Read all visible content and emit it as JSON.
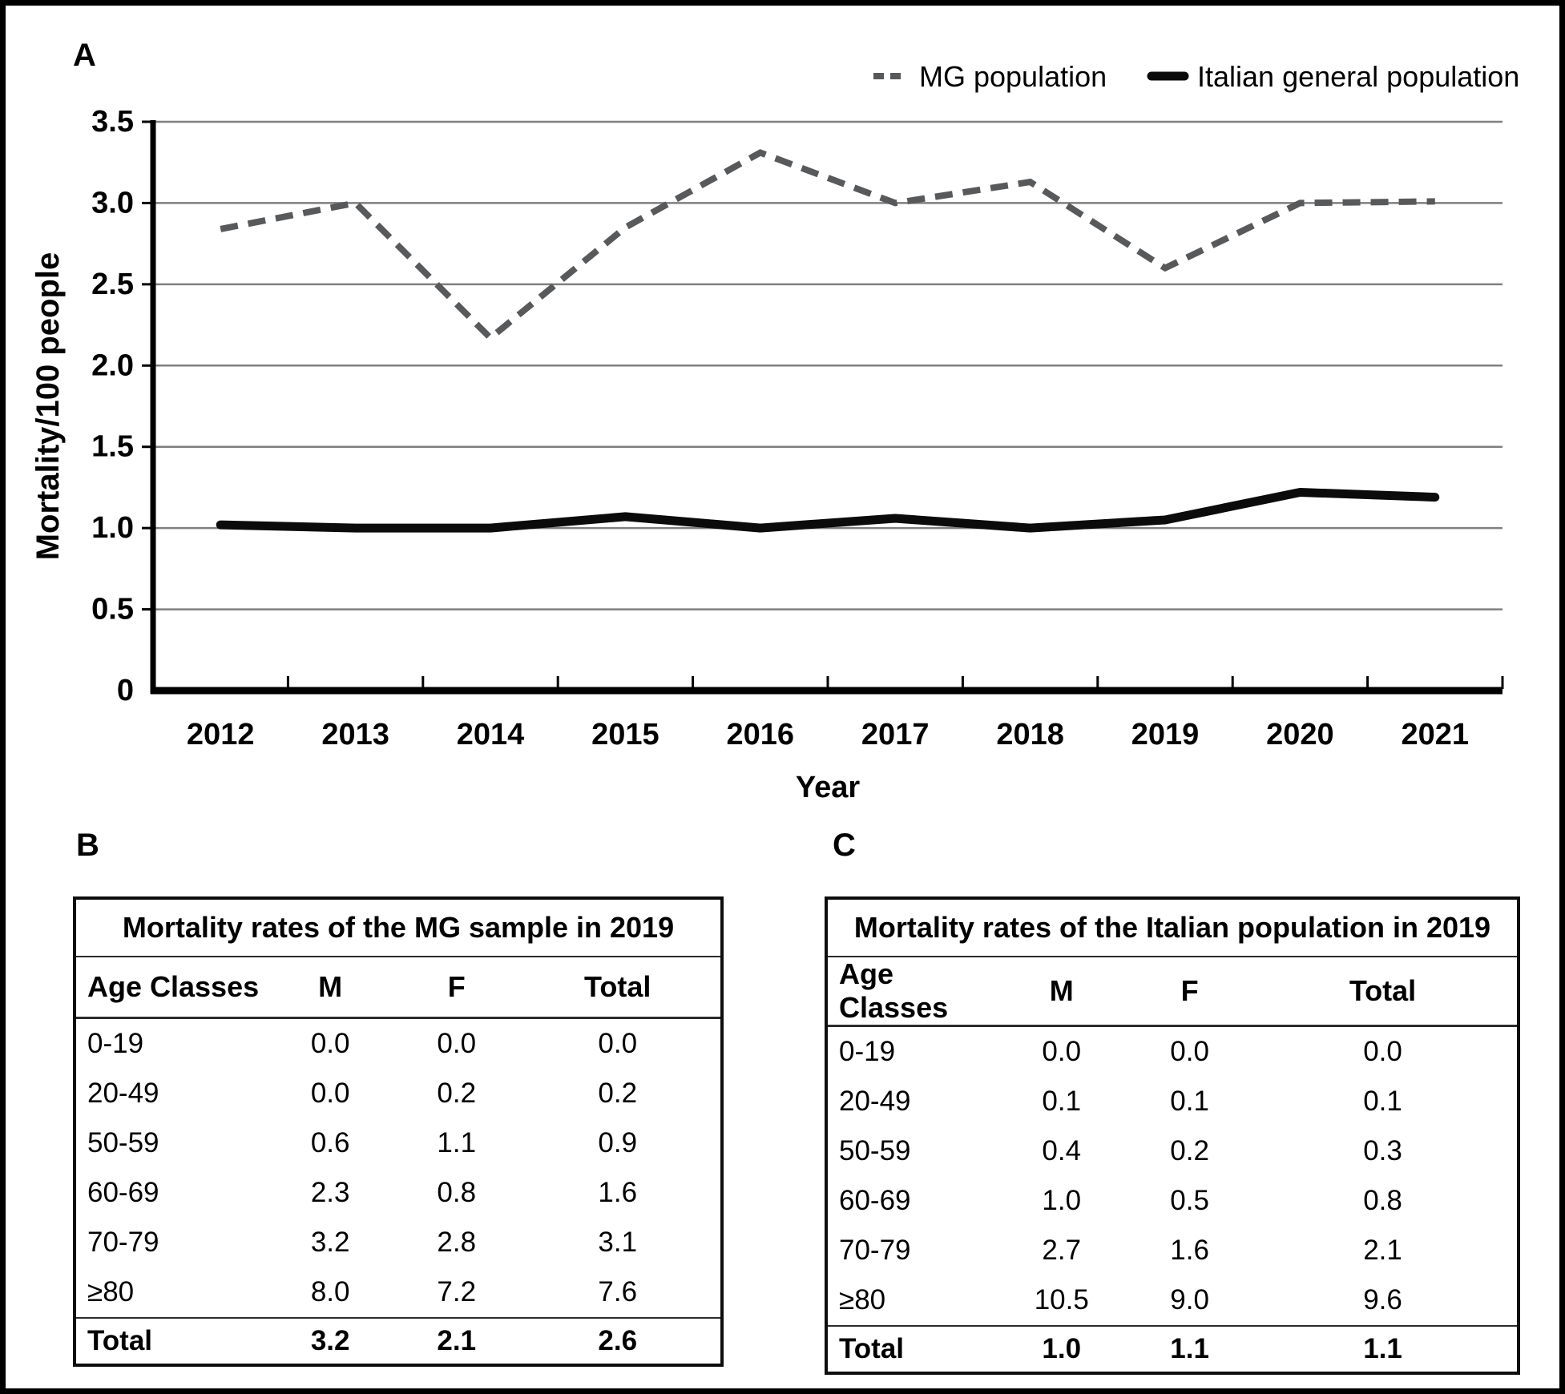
{
  "figure": {
    "panel_a_label": "A",
    "panel_b_label": "B",
    "panel_c_label": "C"
  },
  "chart_data": {
    "type": "line",
    "title": "",
    "xlabel": "Year",
    "ylabel": "Mortality/100 people",
    "categories": [
      "2012",
      "2013",
      "2014",
      "2015",
      "2016",
      "2017",
      "2018",
      "2019",
      "2020",
      "2021"
    ],
    "yticks": [
      "3.5",
      "3.0",
      "2.5",
      "2.0",
      "1.5",
      "1.0",
      "0.5",
      "0"
    ],
    "ylim": [
      0,
      3.5
    ],
    "grid": true,
    "legend_position": "top-right",
    "series": [
      {
        "name": "MG population",
        "style": "dashed",
        "color": "#58595b",
        "values": [
          2.84,
          3.0,
          2.17,
          2.85,
          3.31,
          3.0,
          3.13,
          2.6,
          3.0,
          3.01
        ]
      },
      {
        "name": "Italian general population",
        "style": "solid",
        "color": "#0b0b0b",
        "values": [
          1.02,
          1.0,
          1.0,
          1.07,
          1.0,
          1.06,
          1.0,
          1.05,
          1.22,
          1.19
        ]
      }
    ]
  },
  "table_b": {
    "title": "Mortality rates of the MG sample in 2019",
    "columns": [
      "Age Classes",
      "M",
      "F",
      "Total"
    ],
    "rows": [
      [
        "0-19",
        "0.0",
        "0.0",
        "0.0"
      ],
      [
        "20-49",
        "0.0",
        "0.2",
        "0.2"
      ],
      [
        "50-59",
        "0.6",
        "1.1",
        "0.9"
      ],
      [
        "60-69",
        "2.3",
        "0.8",
        "1.6"
      ],
      [
        "70-79",
        "3.2",
        "2.8",
        "3.1"
      ],
      [
        "≥80",
        "8.0",
        "7.2",
        "7.6"
      ]
    ],
    "total_row": [
      "Total",
      "3.2",
      "2.1",
      "2.6"
    ]
  },
  "table_c": {
    "title": "Mortality rates of the Italian population in 2019",
    "columns": [
      "Age Classes",
      "M",
      "F",
      "Total"
    ],
    "rows": [
      [
        "0-19",
        "0.0",
        "0.0",
        "0.0"
      ],
      [
        "20-49",
        "0.1",
        "0.1",
        "0.1"
      ],
      [
        "50-59",
        "0.4",
        "0.2",
        "0.3"
      ],
      [
        "60-69",
        "1.0",
        "0.5",
        "0.8"
      ],
      [
        "70-79",
        "2.7",
        "1.6",
        "2.1"
      ],
      [
        "≥80",
        "10.5",
        "9.0",
        "9.6"
      ]
    ],
    "total_row": [
      "Total",
      "1.0",
      "1.1",
      "1.1"
    ]
  }
}
